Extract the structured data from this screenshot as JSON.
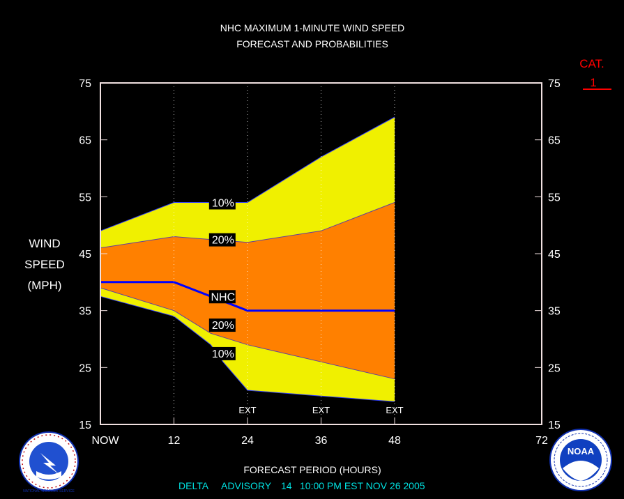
{
  "header": {
    "title_line1": "NHC MAXIMUM 1-MINUTE WIND SPEED",
    "title_line2": "FORECAST AND PROBABILITIES"
  },
  "category": {
    "label": "CAT.",
    "value": "1",
    "color": "#ff0000"
  },
  "footer": {
    "xlabel": "FORECAST PERIOD (HOURS)",
    "storm": "DELTA",
    "advisory_label": "ADVISORY",
    "advisory_number": "14",
    "issued": "10:00 PM EST NOV 26 2005"
  },
  "logos": {
    "left": {
      "text": "NATIONAL WEATHER SERVICE"
    },
    "right": {
      "text": "NOAA",
      "ring_text": "NATIONAL OCEANIC AND ATMOSPHERIC ADMINISTRATION · U.S. DEPARTMENT OF COMMERCE"
    }
  },
  "colors": {
    "background": "#000000",
    "frame": "#f0e0e0",
    "band_outer": "#f0f000",
    "band_inner": "#ff8000",
    "nhc_line": "#0000ff",
    "title_text": "#ffffff",
    "advisory_text": "#00e0e0"
  },
  "chart_data": {
    "type": "area",
    "ylabel": [
      "WIND",
      "SPEED",
      "(MPH)"
    ],
    "ylim": [
      15,
      75
    ],
    "yticks": [
      15,
      25,
      35,
      45,
      55,
      65,
      75
    ],
    "xlim": [
      0,
      72
    ],
    "xticks": [
      0,
      12,
      24,
      36,
      48,
      72
    ],
    "xtick_labels": [
      "NOW",
      "12",
      "24",
      "36",
      "48",
      "72"
    ],
    "grid": "vertical dotted at 12, 24, 36, 48",
    "ext_hours": [
      24,
      36,
      48
    ],
    "ext_label": "EXT",
    "x": [
      0,
      12,
      24,
      36,
      48
    ],
    "series": [
      {
        "name": "10%",
        "kind": "upper",
        "values": [
          49,
          54,
          54,
          62,
          69
        ]
      },
      {
        "name": "20%",
        "kind": "upper",
        "values": [
          46,
          48,
          47,
          49,
          54
        ]
      },
      {
        "name": "NHC",
        "kind": "forecast",
        "values": [
          40,
          40,
          35,
          35,
          35
        ]
      },
      {
        "name": "20%",
        "kind": "lower",
        "values": [
          39,
          35,
          29,
          26,
          23
        ]
      },
      {
        "name": "10%",
        "kind": "lower",
        "values": [
          37.5,
          34,
          21,
          20,
          19
        ]
      }
    ],
    "lower_outer_detail": {
      "x": [
        0,
        12,
        18,
        20,
        24,
        36,
        48
      ],
      "values": [
        37.5,
        34,
        29,
        26,
        21,
        20,
        19
      ]
    },
    "lower_inner_detail": {
      "x": [
        0,
        12,
        18,
        24,
        36,
        48
      ],
      "values": [
        39,
        35,
        31,
        29,
        26,
        23
      ]
    },
    "band_labels": [
      {
        "text": "10%",
        "hour": 20,
        "speed": 54
      },
      {
        "text": "20%",
        "hour": 20,
        "speed": 47.5
      },
      {
        "text": "NHC",
        "hour": 20,
        "speed": 37.5
      },
      {
        "text": "20%",
        "hour": 20,
        "speed": 32.5
      },
      {
        "text": "10%",
        "hour": 20,
        "speed": 27.5
      }
    ]
  }
}
